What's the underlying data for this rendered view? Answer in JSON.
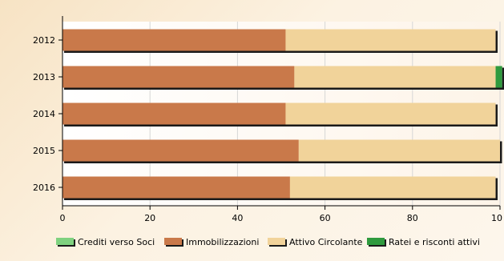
{
  "chart_data": {
    "type": "bar",
    "orientation": "horizontal",
    "stacked": true,
    "categories": [
      "2012",
      "2013",
      "2014",
      "2015",
      "2016"
    ],
    "series": [
      {
        "name": "Crediti verso Soci",
        "values": [
          0,
          0,
          0,
          0,
          0
        ],
        "color": "#7fd17f"
      },
      {
        "name": "Immobilizzazioni",
        "values": [
          51,
          53,
          51,
          54,
          52
        ],
        "color": "#c9794a"
      },
      {
        "name": "Attivo Circolante",
        "values": [
          48,
          46,
          48,
          46,
          47
        ],
        "color": "#f1d39a"
      },
      {
        "name": "Ratei e risconti attivi",
        "values": [
          0,
          1.5,
          0,
          0,
          0
        ],
        "color": "#2f9a3e"
      }
    ],
    "xlim": [
      0,
      100
    ],
    "x_ticks": [
      "0",
      "20",
      "40",
      "60",
      "80",
      "10"
    ],
    "grid": true,
    "legend_position": "bottom"
  }
}
